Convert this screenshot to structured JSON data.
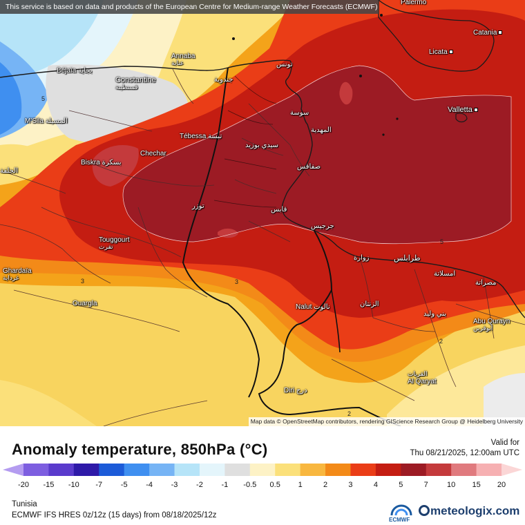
{
  "notice": "This service is based on data and products of the European Centre for Medium-range Weather Forecasts (ECMWF)",
  "attribution": "Map data © OpenStreetMap contributors, rendering GIScience Research Group @ Heidelberg University",
  "title": "Anomaly temperature, 850hPa (°C)",
  "valid_label": "Valid for",
  "valid_time": "Thu 08/21/2025, 12:00am UTC",
  "region": "Tunisia",
  "model_info": "ECMWF IFS HRES 0z/12z (15 days) from 08/18/2025/12z",
  "ecmwf_logo": "ECMWF",
  "brand": "meteologix.com",
  "legend": {
    "ticks": [
      "-20",
      "-15",
      "-10",
      "-7",
      "-5",
      "-4",
      "-3",
      "-2",
      "-1",
      "-0.5",
      "0.5",
      "1",
      "2",
      "3",
      "4",
      "5",
      "7",
      "10",
      "15",
      "20"
    ],
    "colors": [
      "#b49cf0",
      "#7d5ee0",
      "#5a3bcc",
      "#2e1aa8",
      "#1c5bd8",
      "#3f8ff0",
      "#76b4f5",
      "#b6e4f8",
      "#e4f5fb",
      "#dfdfdf",
      "#fdf2c6",
      "#fbe07a",
      "#f8b73f",
      "#f38a18",
      "#ea3d17",
      "#c41d12",
      "#9c1b24",
      "#c43a3c",
      "#e07a7e",
      "#f6b0b2",
      "#fbd6d6"
    ]
  },
  "cities": [
    {
      "id": "palermo",
      "name": "Palermo",
      "ar": ""
    },
    {
      "id": "catania",
      "name": "Catania",
      "ar": ""
    },
    {
      "id": "licata",
      "name": "Licata",
      "ar": ""
    },
    {
      "id": "valletta",
      "name": "Valletta",
      "ar": ""
    },
    {
      "id": "annaba",
      "name": "Annaba",
      "ar": "عنابة"
    },
    {
      "id": "bejaia",
      "name": "Béjaïa",
      "ar": "بجاية"
    },
    {
      "id": "constantine",
      "name": "Constantine",
      "ar": "قسنطينة"
    },
    {
      "id": "msila",
      "name": "M'Sila",
      "ar": "المسيلة"
    },
    {
      "id": "djelfa",
      "name": "",
      "ar": "الجلفة"
    },
    {
      "id": "tunis",
      "name": "",
      "ar": "تونس"
    },
    {
      "id": "jendouba",
      "name": "",
      "ar": "جندوبة"
    },
    {
      "id": "sousse",
      "name": "",
      "ar": "سوسة"
    },
    {
      "id": "mahdia",
      "name": "",
      "ar": "المهدية"
    },
    {
      "id": "tebessa",
      "name": "Tébessa",
      "ar": "تبسة"
    },
    {
      "id": "sidibouzid",
      "name": "",
      "ar": "سيدي بوزيد"
    },
    {
      "id": "sfax",
      "name": "",
      "ar": "صفاقس"
    },
    {
      "id": "biskra",
      "name": "Biskra",
      "ar": "بسكرة"
    },
    {
      "id": "chechar",
      "name": "Chechar",
      "ar": ""
    },
    {
      "id": "tozeur",
      "name": "",
      "ar": "توزر"
    },
    {
      "id": "gabes",
      "name": "",
      "ar": "قابس"
    },
    {
      "id": "djerba",
      "name": "",
      "ar": "جرجيس"
    },
    {
      "id": "touggourt",
      "name": "Touggourt",
      "ar": "تقرت"
    },
    {
      "id": "zuwara",
      "name": "",
      "ar": "زوارة"
    },
    {
      "id": "tripoli",
      "name": "",
      "ar": "طرابلس"
    },
    {
      "id": "ghardaia",
      "name": "Ghardaïa",
      "ar": "غرداية"
    },
    {
      "id": "misrata",
      "name": "",
      "ar": "مصراتة"
    },
    {
      "id": "khoms",
      "name": "",
      "ar": "امسلاتة"
    },
    {
      "id": "ouargla",
      "name": "Ouargla",
      "ar": ""
    },
    {
      "id": "nalut",
      "name": "Nalut",
      "ar": "نالوت"
    },
    {
      "id": "zintan",
      "name": "",
      "ar": "الزنتان"
    },
    {
      "id": "baniwalid",
      "name": "",
      "ar": "بني وليد"
    },
    {
      "id": "abuqurayn",
      "name": "Abu Qurayn",
      "ar": "أبوقرين"
    },
    {
      "id": "alqaryat",
      "name": "Al Qaryat",
      "ar": "القريات"
    },
    {
      "id": "diri",
      "name": "Diri",
      "ar": "درج"
    }
  ],
  "isolines": [
    "5",
    "3",
    "5",
    "2",
    "2",
    "3"
  ]
}
